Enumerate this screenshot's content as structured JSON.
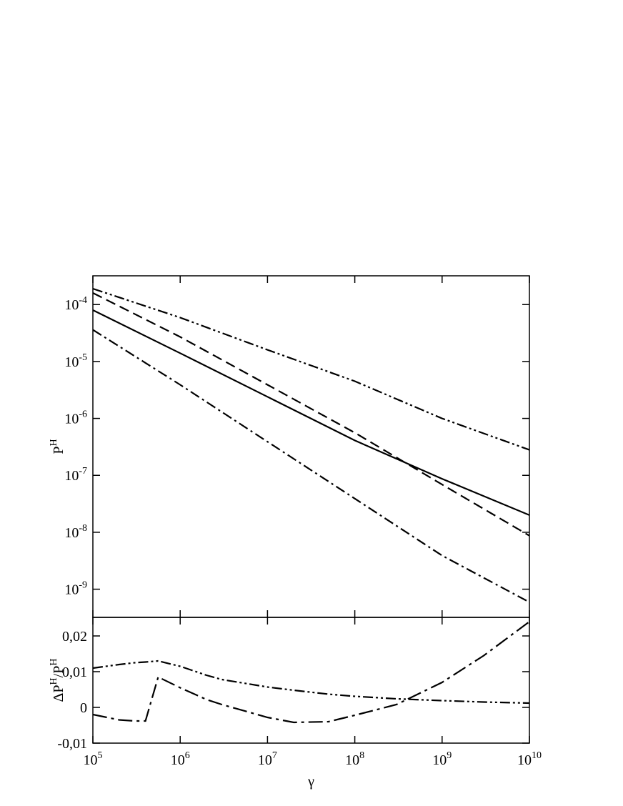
{
  "chart_data": [
    {
      "type": "line",
      "ylabel": "P^H",
      "xlog": true,
      "ylog": true,
      "xlim": [
        100000,
        10000000000
      ],
      "ylim": [
        3.2e-10,
        0.00032
      ],
      "xticks": [
        100000,
        1000000,
        10000000,
        100000000,
        1000000000,
        10000000000
      ],
      "yticks": [
        {
          "value": 0.0001,
          "label": "10^-4"
        },
        {
          "value": 1e-05,
          "label": "10^-5"
        },
        {
          "value": 1e-06,
          "label": "10^-6"
        },
        {
          "value": 1e-07,
          "label": "10^-7"
        },
        {
          "value": 1e-08,
          "label": "10^-8"
        },
        {
          "value": 1e-09,
          "label": "10^-9"
        }
      ],
      "x": [
        100000,
        1000000,
        10000000,
        100000000,
        1000000000,
        10000000000
      ],
      "series": [
        {
          "color": "#000000",
          "dash": "solid",
          "values": [
            8e-05,
            1.4e-05,
            2.4e-06,
            4.1e-07,
            8.7e-08,
            2e-08
          ]
        },
        {
          "color": "#000000",
          "dash": "dashed",
          "values": [
            0.00016,
            2.7e-05,
            3.9e-06,
            5.6e-07,
            6.9e-08,
            8.7e-09
          ]
        },
        {
          "color": "#000000",
          "dash": "dashdot",
          "values": [
            3.6e-05,
            3.9e-06,
            3.9e-07,
            3.9e-08,
            3.9e-09,
            5.9e-10
          ]
        },
        {
          "color": "#000000",
          "dash": "dashdotdot",
          "values": [
            0.00019,
            5.9e-05,
            1.6e-05,
            4.5e-06,
            1e-06,
            2.8e-07
          ]
        }
      ]
    },
    {
      "type": "line",
      "ylabel": "ΔP^H/P^H",
      "xlabel": "γ",
      "xlog": true,
      "ylog": false,
      "xlim": [
        100000,
        10000000000
      ],
      "ylim": [
        -0.01,
        0.0252
      ],
      "xticks": [
        {
          "value": 100000,
          "label": "10^5"
        },
        {
          "value": 1000000,
          "label": "10^6"
        },
        {
          "value": 10000000,
          "label": "10^7"
        },
        {
          "value": 100000000,
          "label": "10^8"
        },
        {
          "value": 1000000000,
          "label": "10^9"
        },
        {
          "value": 10000000000,
          "label": "10^10"
        }
      ],
      "yticks": [
        {
          "value": -0.01,
          "label": "-0,01"
        },
        0,
        {
          "value": 0.01,
          "label": "0,01"
        },
        {
          "value": 0.02,
          "label": "0,02"
        }
      ],
      "x": [
        100000,
        200000,
        300000,
        400000,
        560000,
        1000000,
        2000000,
        3000000,
        10000000,
        20000000,
        50000000,
        100000000,
        300000000,
        1000000000,
        3000000000,
        10000000000
      ],
      "series": [
        {
          "color": "#000000",
          "dash": "dashdotdot",
          "values": [
            0.011,
            0.012,
            0.0125,
            0.0127,
            0.013,
            0.0115,
            0.009,
            0.0078,
            0.0057,
            0.0048,
            0.0037,
            0.0031,
            0.0024,
            0.0019,
            0.0015,
            0.0012
          ]
        },
        {
          "color": "#000000",
          "dash": "longdashdot",
          "values": [
            -0.002,
            -0.0035,
            -0.0038,
            -0.0038,
            0.0085,
            0.0055,
            0.0022,
            0.0008,
            -0.0028,
            -0.0042,
            -0.004,
            -0.0022,
            0.0008,
            0.007,
            0.0145,
            0.024
          ]
        }
      ]
    }
  ]
}
